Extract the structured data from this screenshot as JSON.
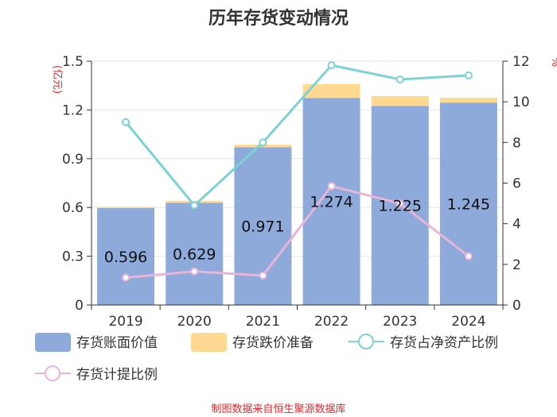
{
  "chart_data": {
    "type": "bar",
    "title": "历年存货变动情况",
    "categories": [
      "2019",
      "2020",
      "2021",
      "2022",
      "2023",
      "2024"
    ],
    "left_axis": {
      "unit": "(亿元)",
      "ylim": [
        0,
        1.5
      ],
      "ticks": [
        "0",
        "0.3",
        "0.6",
        "0.9",
        "1.2",
        "1.5"
      ]
    },
    "right_axis": {
      "unit": "%",
      "ylim": [
        0,
        12
      ],
      "ticks": [
        "0",
        "2",
        "4",
        "6",
        "8",
        "10",
        "12"
      ]
    },
    "series": [
      {
        "name": "存货账面价值",
        "kind": "bar",
        "axis": "left",
        "color": "#8eaadb",
        "values": [
          0.596,
          0.629,
          0.971,
          1.274,
          1.225,
          1.245
        ],
        "labels": [
          "0.596",
          "0.629",
          "0.971",
          "1.274",
          "1.225",
          "1.245"
        ]
      },
      {
        "name": "存货跌价准备",
        "kind": "bar",
        "axis": "left",
        "color": "#ffd991",
        "values": [
          0.008,
          0.012,
          0.015,
          0.085,
          0.06,
          0.03
        ]
      },
      {
        "name": "存货占净资产比例",
        "kind": "line",
        "axis": "right",
        "color": "#7dd3d3",
        "values": [
          9.0,
          4.9,
          8.0,
          11.8,
          11.1,
          11.3
        ]
      },
      {
        "name": "存货计提比例",
        "kind": "line",
        "axis": "right",
        "color": "#e8b4d8",
        "values": [
          1.35,
          1.65,
          1.45,
          5.85,
          5.0,
          2.4
        ]
      }
    ],
    "grid": true,
    "legend_position": "bottom"
  },
  "footer": {
    "source": "制图数据来自恒生聚源数据库"
  }
}
